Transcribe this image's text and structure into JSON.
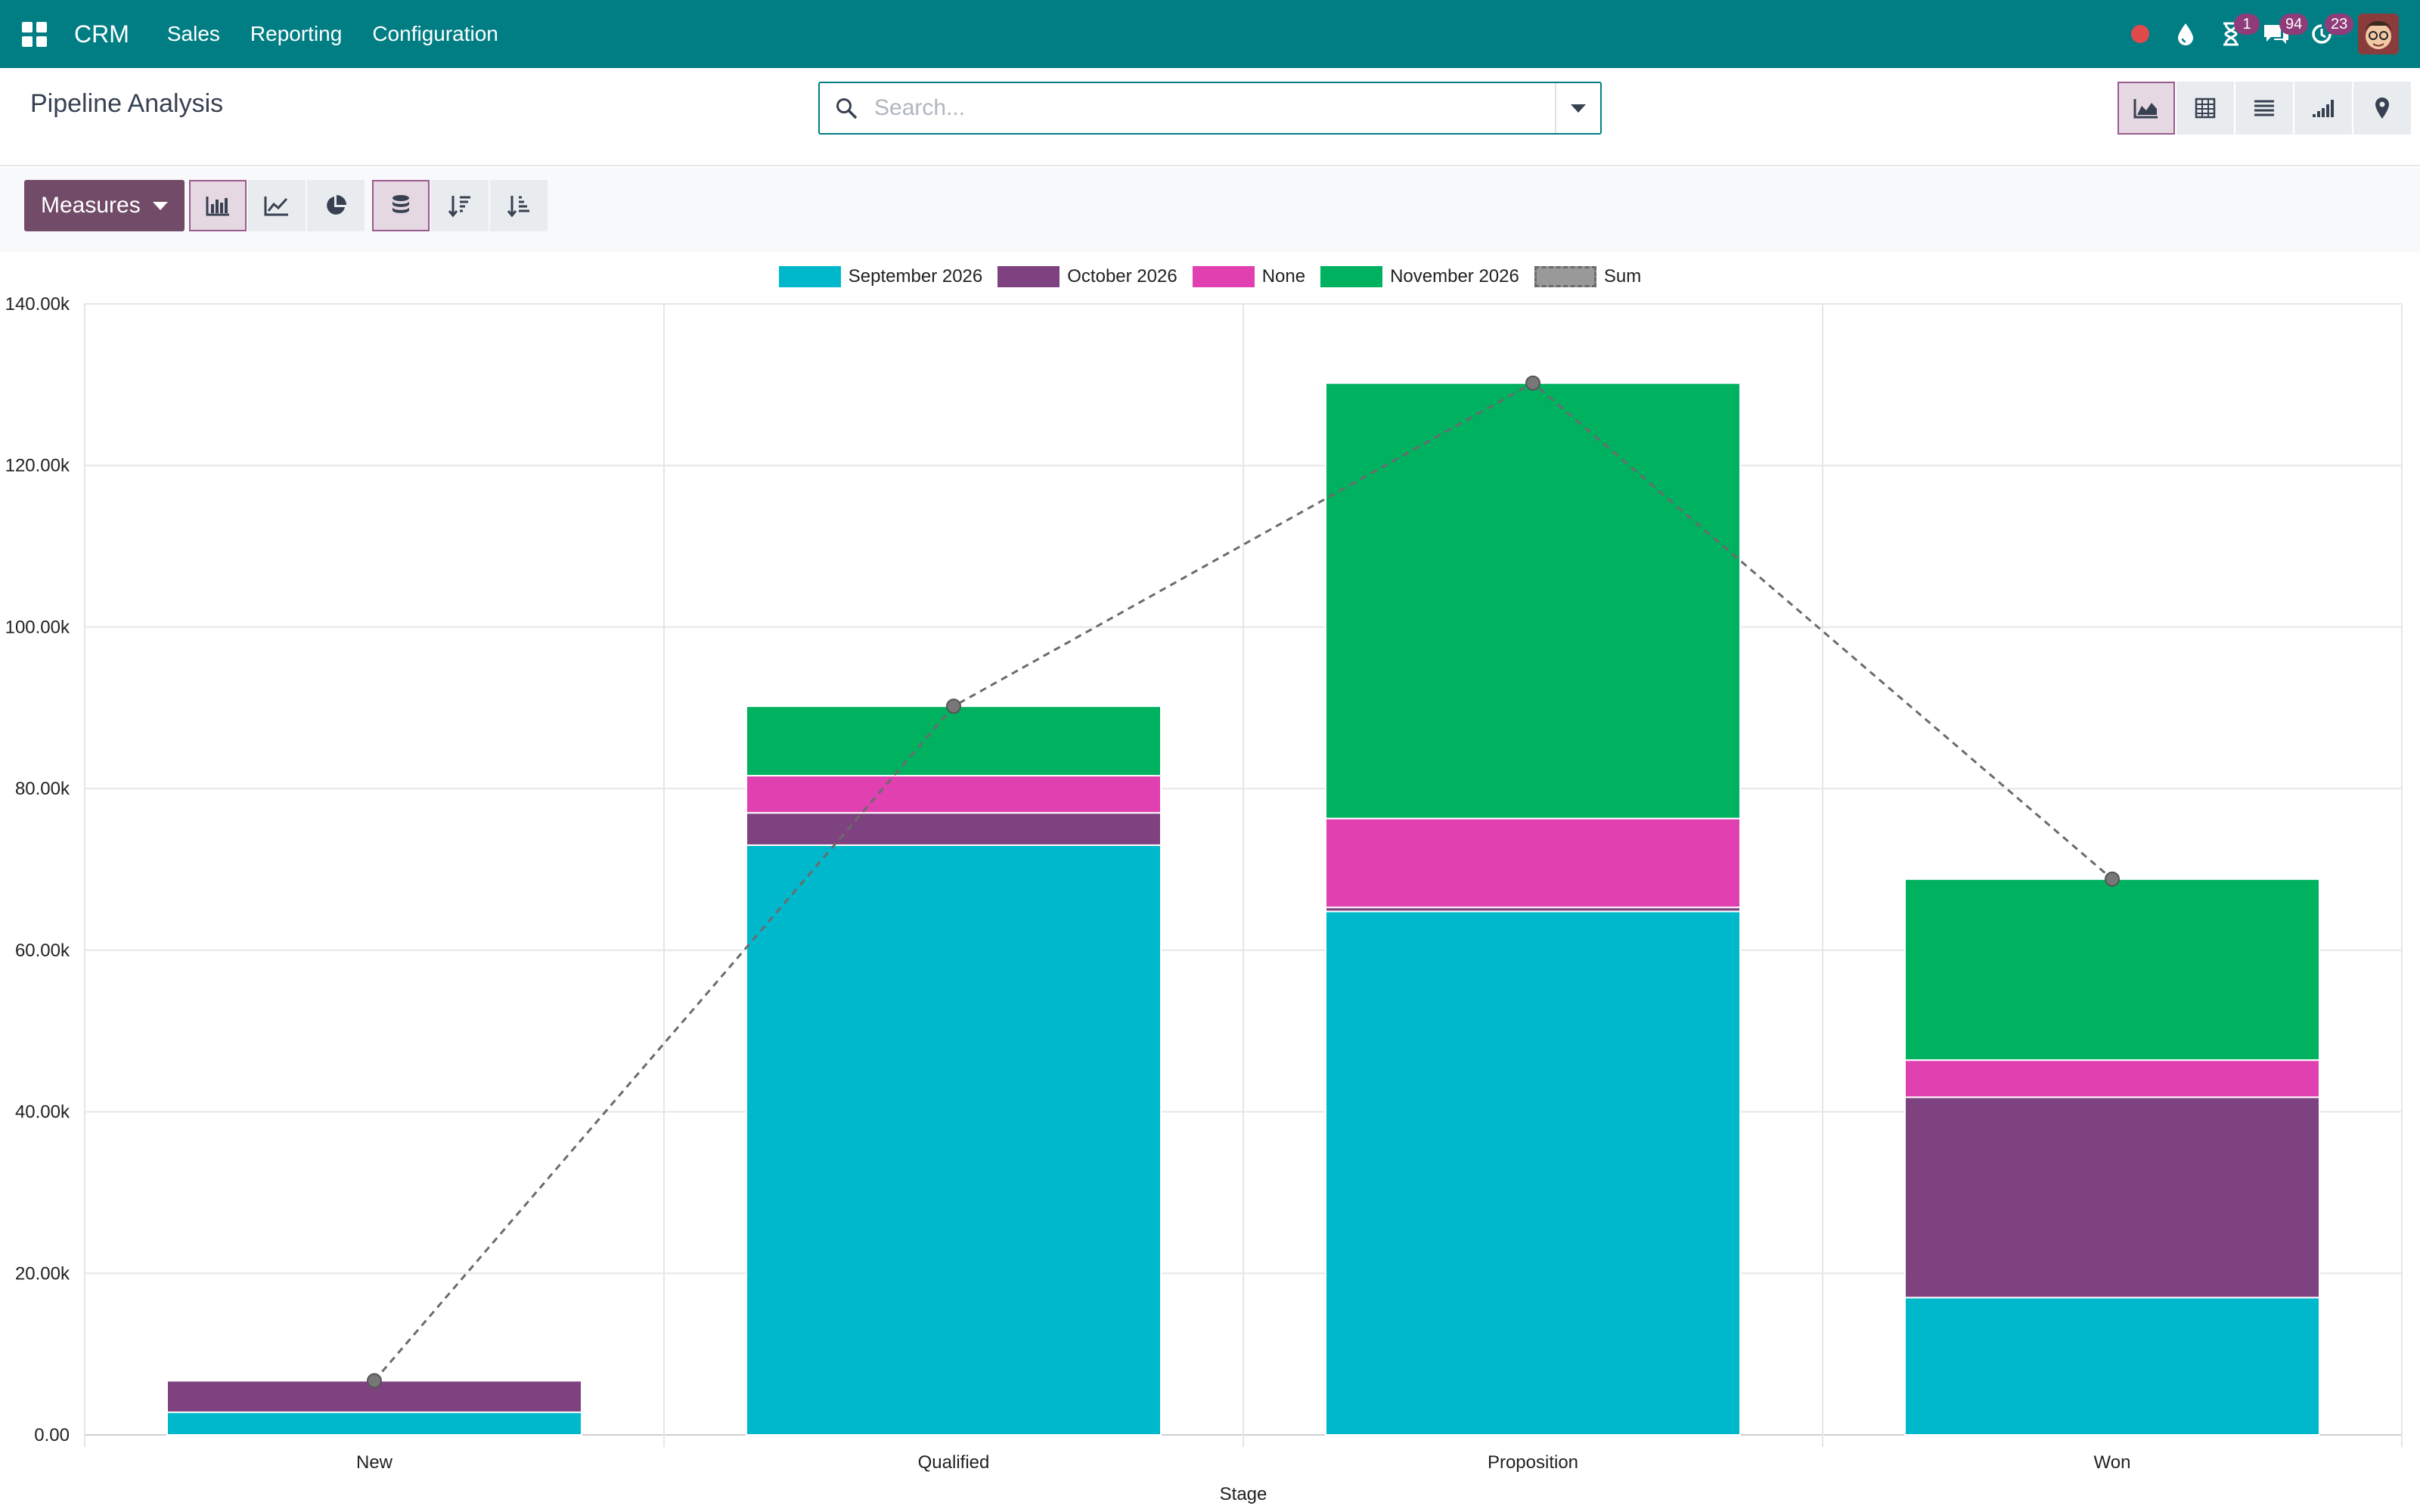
{
  "navbar": {
    "brand": "CRM",
    "menu": [
      "Sales",
      "Reporting",
      "Configuration"
    ],
    "badges": {
      "activities": "1",
      "messages": "94",
      "updates": "23"
    }
  },
  "control_panel": {
    "title": "Pipeline Analysis",
    "search_placeholder": "Search...",
    "views": [
      "graph",
      "pivot",
      "list",
      "cohort",
      "map"
    ],
    "active_view": "graph"
  },
  "toolbar": {
    "measures_label": "Measures",
    "chart_types": [
      "bar-chart",
      "line-chart",
      "pie-chart"
    ],
    "active_chart_type": "bar-chart",
    "stacked": true,
    "sort_buttons": [
      "sort-descending",
      "sort-ascending"
    ]
  },
  "colors": {
    "brand": "#017e84",
    "primary": "#714b67",
    "series": [
      "#00b8cc",
      "#7f4281",
      "#e040b0",
      "#00b160"
    ],
    "sum_line": "#6b6b6b"
  },
  "chart_data": {
    "type": "bar",
    "stacked": true,
    "categories": [
      "New",
      "Qualified",
      "Proposition",
      "Won"
    ],
    "xlabel": "Stage",
    "ylabel": "",
    "ylim": [
      0,
      140000
    ],
    "yticks": [
      0,
      20000,
      40000,
      60000,
      80000,
      100000,
      120000,
      140000
    ],
    "ytick_labels": [
      "0.00",
      "20.00k",
      "40.00k",
      "60.00k",
      "80.00k",
      "100.00k",
      "120.00k",
      "140.00k"
    ],
    "grid": true,
    "legend_position": "top-center",
    "series": [
      {
        "name": "September 2026",
        "values": [
          2800,
          73000,
          64800,
          17000
        ]
      },
      {
        "name": "October 2026",
        "values": [
          3900,
          4000,
          500,
          24800
        ]
      },
      {
        "name": "None",
        "values": [
          0,
          4600,
          11000,
          4600
        ]
      },
      {
        "name": "November 2026",
        "values": [
          0,
          8600,
          53900,
          22400
        ]
      }
    ],
    "sum_series": {
      "name": "Sum",
      "values": [
        6700,
        90200,
        130200,
        68800
      ],
      "style": "dashed-line"
    }
  }
}
